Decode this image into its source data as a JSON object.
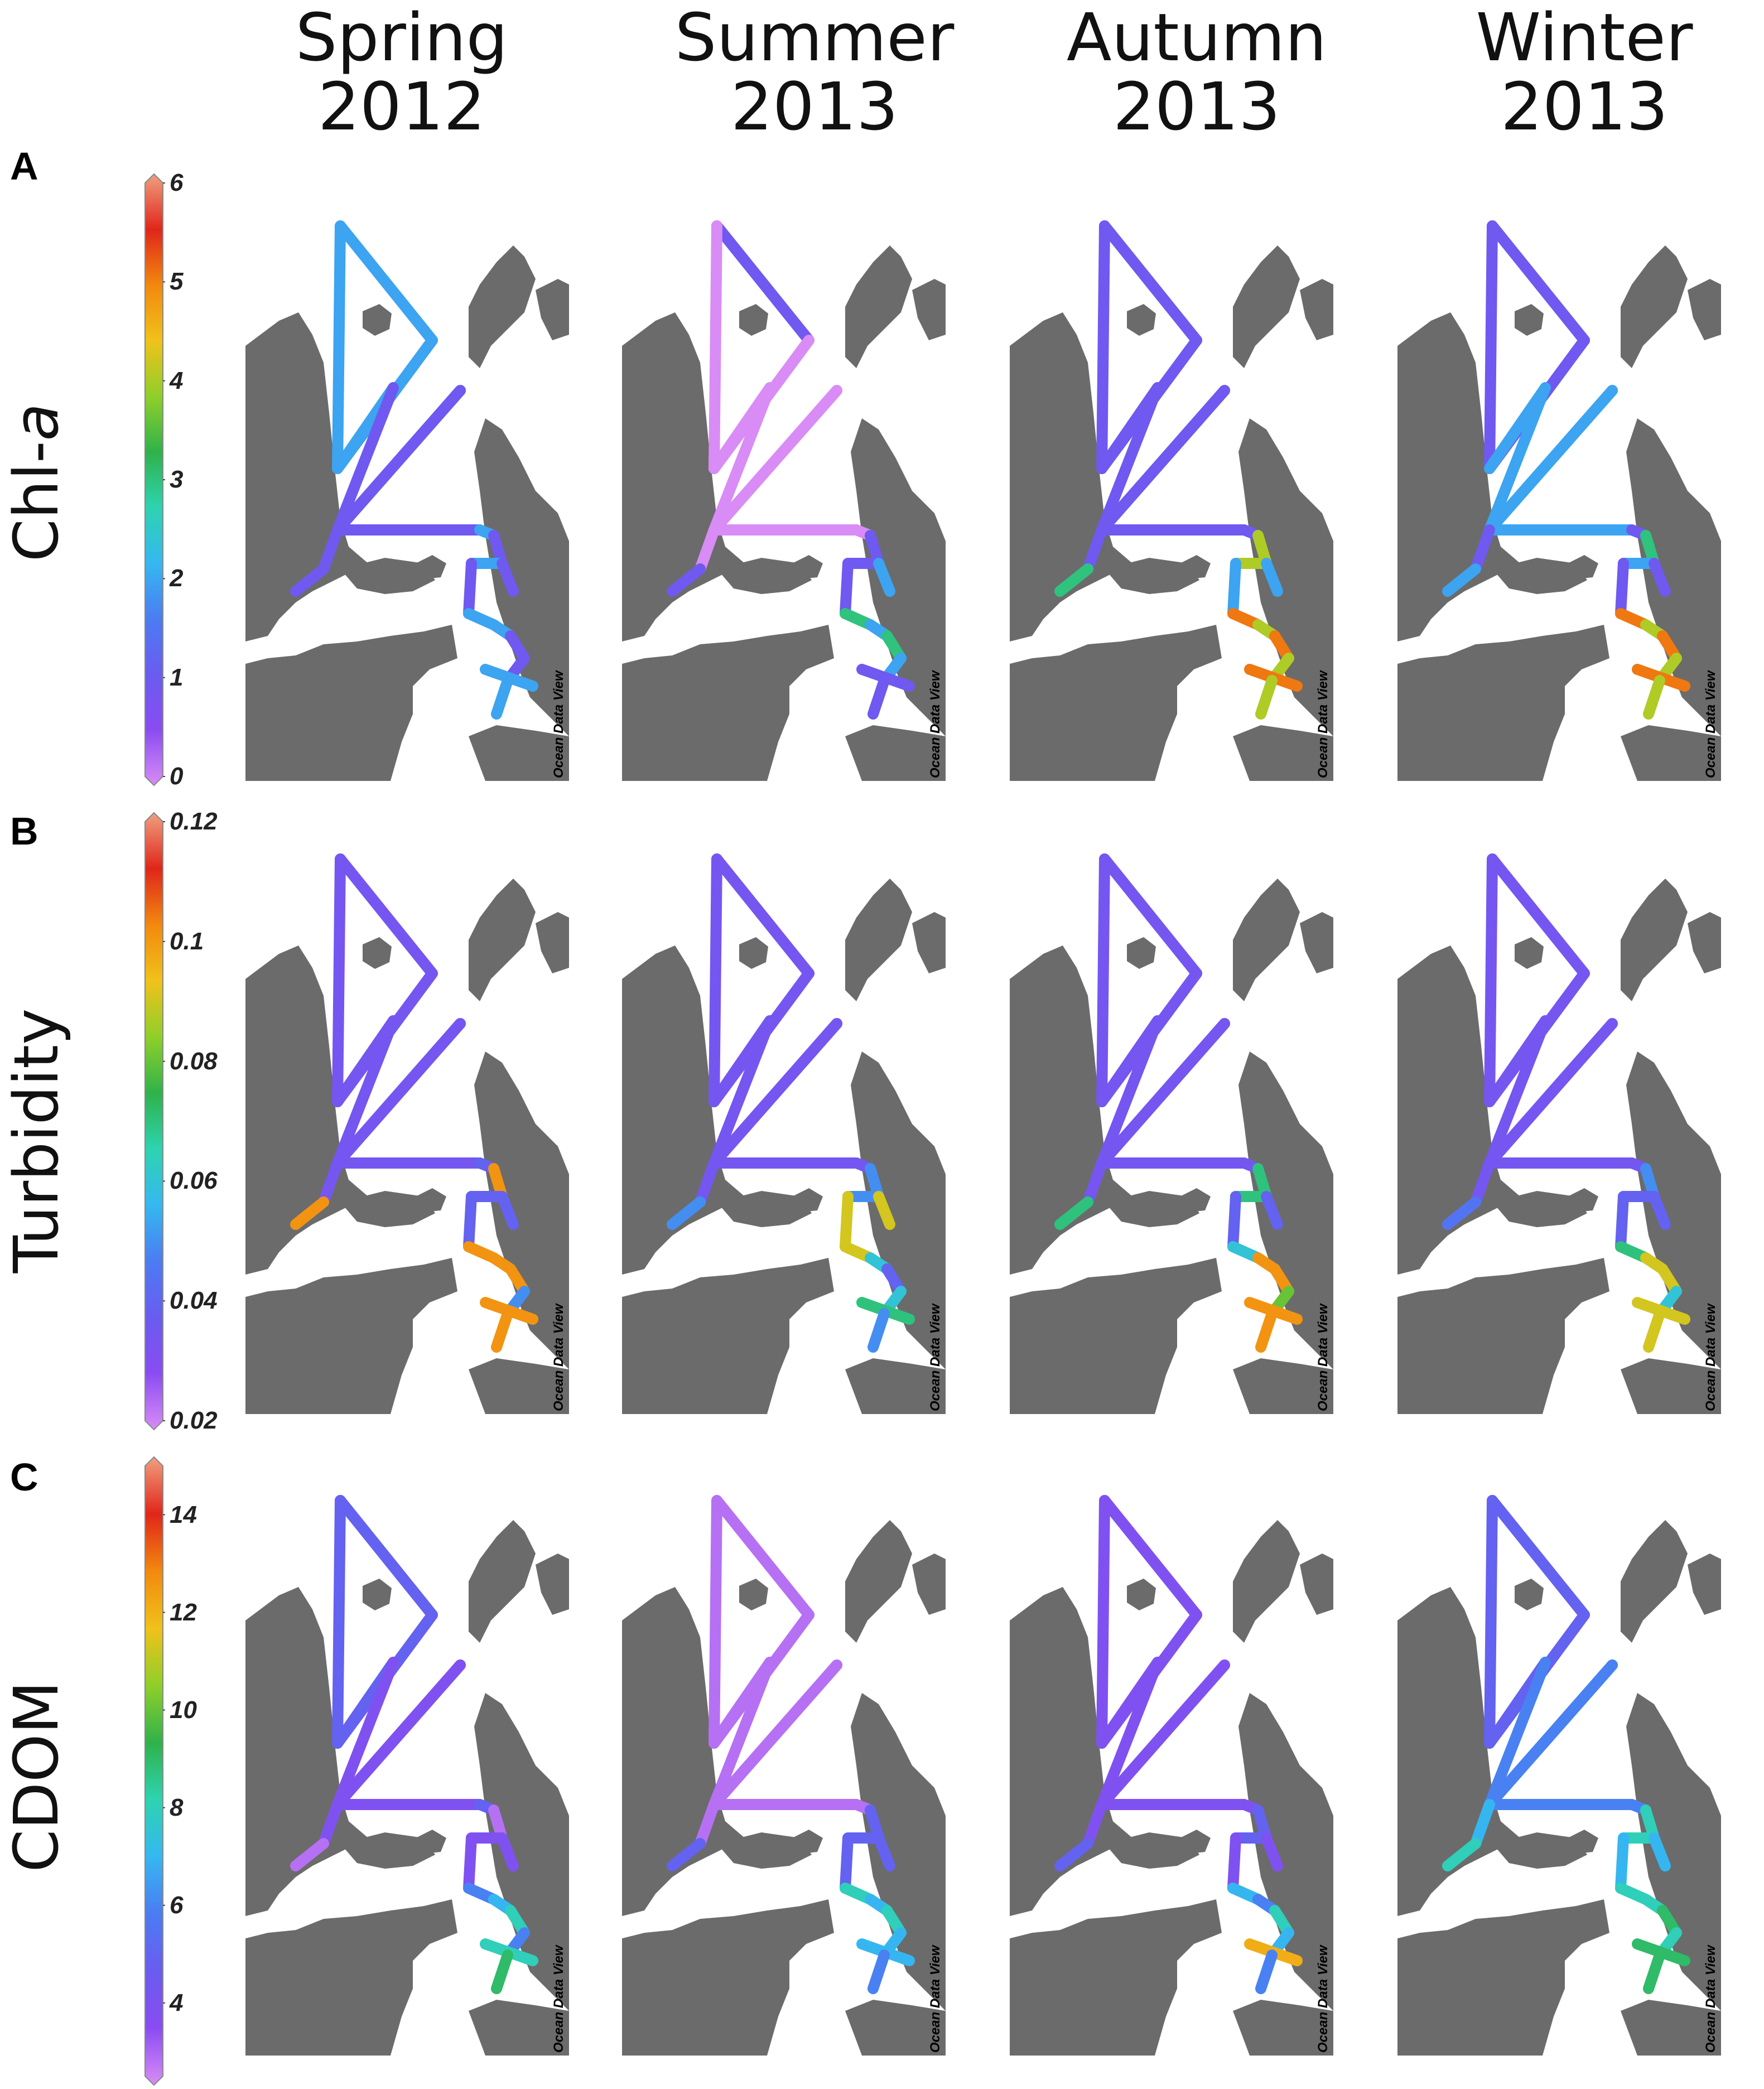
{
  "columns": [
    {
      "season": "Spring",
      "year": "2012"
    },
    {
      "season": "Summer",
      "year": "2013"
    },
    {
      "season": "Autumn",
      "year": "2013"
    },
    {
      "season": "Winter",
      "year": "2013"
    }
  ],
  "rows": [
    {
      "letter": "A",
      "label_main": "Chl-",
      "label_italic": "a",
      "ticks": [
        "6",
        "5",
        "4",
        "3",
        "2",
        "1",
        "0"
      ],
      "min": 0,
      "max": 6
    },
    {
      "letter": "B",
      "label_main": "Turbidity",
      "label_italic": "",
      "ticks": [
        "0.12",
        "0.1",
        "0.08",
        "0.06",
        "0.04",
        "0.02"
      ],
      "min": 0.02,
      "max": 0.12
    },
    {
      "letter": "C",
      "label_main": "CDOM",
      "label_italic": "",
      "ticks": [
        "14",
        "12",
        "10",
        "8",
        "6",
        "4"
      ],
      "min": 2.5,
      "max": 15
    }
  ],
  "watermark": "Ocean Data View",
  "colors": {
    "land": "#6b6b6b",
    "water": "#ffffff",
    "scale": [
      "#d98cf5",
      "#8a4cf2",
      "#6a5cf0",
      "#4b7cf2",
      "#35b8f0",
      "#2ed3b0",
      "#2fb24a",
      "#8fcf2a",
      "#f0c21a",
      "#f2890f",
      "#e0261a",
      "#f0a080"
    ]
  },
  "chart_data": {
    "type": "heatmap",
    "description_free": true,
    "panels": [
      {
        "row": "A",
        "column": "Spring 2012",
        "segments": [
          2,
          2,
          2,
          2,
          1,
          1,
          1,
          1,
          2,
          1,
          1,
          1,
          2,
          1,
          1,
          2,
          2,
          1,
          1,
          2,
          2
        ]
      },
      {
        "row": "A",
        "column": "Summer 2013",
        "segments": [
          1,
          0,
          0,
          0,
          0,
          0,
          0,
          0,
          0,
          0,
          1,
          1,
          1,
          1,
          2,
          3,
          2,
          3,
          2,
          1,
          1
        ]
      },
      {
        "row": "A",
        "column": "Autumn 2013",
        "segments": [
          1,
          1,
          1,
          1,
          1,
          1,
          1,
          1,
          1,
          1,
          3,
          4,
          4,
          2,
          2,
          5,
          4,
          5,
          4,
          5,
          4
        ]
      },
      {
        "row": "A",
        "column": "Winter 2013",
        "segments": [
          1,
          1,
          1,
          2,
          2,
          2,
          2,
          2,
          1,
          1,
          2,
          3,
          2,
          1,
          1,
          5,
          4,
          5,
          4,
          5,
          4
        ]
      },
      {
        "row": "B",
        "column": "Spring 2012",
        "segments": [
          0.035,
          0.035,
          0.035,
          0.035,
          0.035,
          0.035,
          0.035,
          0.035,
          0.04,
          0.035,
          0.1,
          0.1,
          0.04,
          0.04,
          0.04,
          0.1,
          0.1,
          0.1,
          0.05,
          0.1,
          0.1
        ]
      },
      {
        "row": "B",
        "column": "Summer 2013",
        "segments": [
          0.035,
          0.035,
          0.035,
          0.035,
          0.035,
          0.035,
          0.035,
          0.035,
          0.035,
          0.035,
          0.05,
          0.05,
          0.05,
          0.09,
          0.09,
          0.09,
          0.06,
          0.04,
          0.06,
          0.07,
          0.05
        ]
      },
      {
        "row": "B",
        "column": "Autumn 2013",
        "segments": [
          0.035,
          0.035,
          0.035,
          0.035,
          0.035,
          0.035,
          0.035,
          0.035,
          0.035,
          0.035,
          0.07,
          0.07,
          0.07,
          0.04,
          0.04,
          0.06,
          0.1,
          0.1,
          0.08,
          0.1,
          0.1
        ]
      },
      {
        "row": "B",
        "column": "Winter 2013",
        "segments": [
          0.035,
          0.035,
          0.035,
          0.035,
          0.035,
          0.035,
          0.035,
          0.035,
          0.035,
          0.035,
          0.045,
          0.05,
          0.04,
          0.04,
          0.04,
          0.07,
          0.09,
          0.09,
          0.06,
          0.09,
          0.09
        ]
      },
      {
        "row": "C",
        "column": "Spring 2012",
        "segments": [
          5,
          5,
          5,
          5,
          4,
          4,
          4,
          4,
          5,
          4,
          3,
          3,
          4,
          4,
          4,
          6,
          7,
          8,
          6,
          8,
          9
        ]
      },
      {
        "row": "C",
        "column": "Summer 2013",
        "segments": [
          3,
          3,
          3,
          3,
          3,
          3,
          3,
          3,
          3,
          3,
          5,
          5,
          5,
          5,
          5,
          8,
          7,
          8,
          7,
          7,
          6
        ]
      },
      {
        "row": "C",
        "column": "Autumn 2013",
        "segments": [
          4,
          4,
          4,
          4,
          4,
          4,
          4,
          4,
          4,
          4,
          5,
          5,
          5,
          4,
          4,
          7,
          6,
          8,
          7,
          12,
          6
        ]
      },
      {
        "row": "C",
        "column": "Winter 2013",
        "segments": [
          5,
          5,
          5,
          5,
          6,
          6,
          6,
          6,
          6,
          7,
          8,
          8,
          8,
          7,
          7,
          8,
          8,
          9,
          8,
          9,
          9
        ]
      }
    ]
  }
}
